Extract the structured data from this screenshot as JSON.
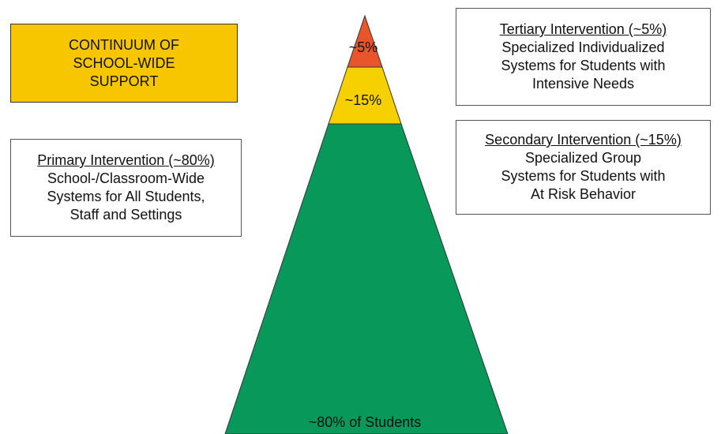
{
  "heading": {
    "lines": [
      "CONTINUUM OF",
      "SCHOOL-WIDE",
      "SUPPORT"
    ]
  },
  "pyramid": {
    "tiers": [
      {
        "label": "~5%"
      },
      {
        "label": "~15%"
      },
      {
        "label": "~80% of Students"
      }
    ]
  },
  "boxes": [
    {
      "title": "Tertiary Intervention (~5%)",
      "lines": [
        "Specialized Individualized",
        "Systems for Students with",
        "Intensive Needs"
      ]
    },
    {
      "title": "Secondary Intervention (~15%)",
      "lines": [
        "Specialized Group",
        "Systems for Students with",
        "At Risk Behavior"
      ]
    },
    {
      "title": "Primary Intervention (~80%)",
      "lines": [
        "School-/Classroom-Wide",
        "Systems for All Students,",
        "Staff and Settings"
      ]
    }
  ]
}
